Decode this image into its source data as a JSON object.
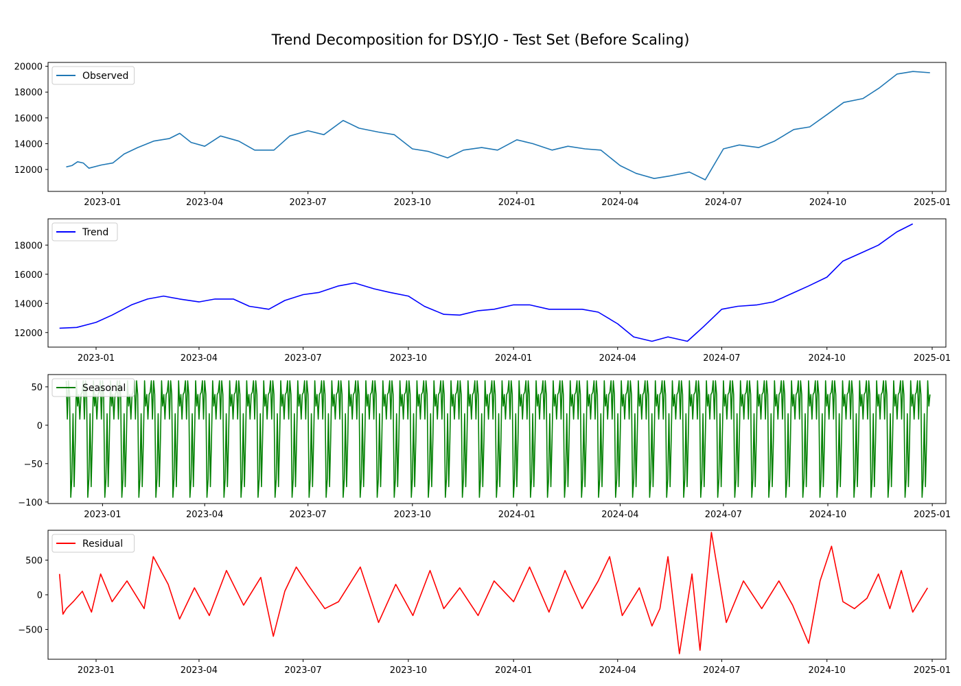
{
  "chart_data": {
    "title": "Trend Decomposition for DSY.JO - Test Set (Before Scaling)",
    "type": "line",
    "x_range": [
      "2022-11-14",
      "2025-01-13"
    ],
    "x_ticks": [
      "2023-01",
      "2023-04",
      "2023-07",
      "2023-10",
      "2024-01",
      "2024-04",
      "2024-07",
      "2024-10",
      "2025-01"
    ],
    "panels": [
      {
        "name": "Observed",
        "legend": "Observed",
        "color": "#1f77b4",
        "x_range": [
          "2022-11-14",
          "2025-01-13"
        ],
        "ylim": [
          10300,
          20300
        ],
        "yticks": [
          12000,
          14000,
          16000,
          18000,
          20000
        ],
        "x": [
          "2022-11-30",
          "2022-12-05",
          "2022-12-10",
          "2022-12-15",
          "2022-12-20",
          "2022-12-31",
          "2023-01-10",
          "2023-01-20",
          "2023-02-01",
          "2023-02-15",
          "2023-03-01",
          "2023-03-10",
          "2023-03-20",
          "2023-04-01",
          "2023-04-15",
          "2023-05-01",
          "2023-05-15",
          "2023-06-01",
          "2023-06-15",
          "2023-07-01",
          "2023-07-15",
          "2023-08-01",
          "2023-08-15",
          "2023-09-01",
          "2023-09-15",
          "2023-10-01",
          "2023-10-15",
          "2023-11-01",
          "2023-11-15",
          "2023-12-01",
          "2023-12-15",
          "2024-01-01",
          "2024-01-15",
          "2024-02-01",
          "2024-02-15",
          "2024-03-01",
          "2024-03-15",
          "2024-04-01",
          "2024-04-15",
          "2024-05-01",
          "2024-05-15",
          "2024-06-01",
          "2024-06-15",
          "2024-07-01",
          "2024-07-15",
          "2024-08-01",
          "2024-08-15",
          "2024-09-01",
          "2024-09-15",
          "2024-10-01",
          "2024-10-15",
          "2024-11-01",
          "2024-11-15",
          "2024-12-01",
          "2024-12-15",
          "2024-12-30"
        ],
        "values": [
          12200,
          12300,
          12600,
          12500,
          12100,
          12350,
          12500,
          13200,
          13700,
          14200,
          14400,
          14800,
          14100,
          13800,
          14600,
          14200,
          13500,
          13500,
          14600,
          15000,
          14700,
          15800,
          15200,
          14900,
          14700,
          13600,
          13400,
          12900,
          13500,
          13700,
          13500,
          14300,
          14000,
          13500,
          13800,
          13600,
          13500,
          12300,
          11700,
          11300,
          11500,
          11800,
          11200,
          13600,
          13900,
          13700,
          14200,
          15100,
          15300,
          16300,
          17200,
          17500,
          18300,
          19400,
          19600,
          19500
        ]
      },
      {
        "name": "Trend",
        "legend": "Trend",
        "color": "#0000ff",
        "x_range": [
          "2022-11-20",
          "2025-01-13"
        ],
        "ylim": [
          11000,
          19800
        ],
        "yticks": [
          12000,
          14000,
          16000,
          18000
        ],
        "x": [
          "2022-11-30",
          "2022-12-15",
          "2023-01-01",
          "2023-01-15",
          "2023-02-01",
          "2023-02-15",
          "2023-03-01",
          "2023-03-15",
          "2023-04-01",
          "2023-04-15",
          "2023-05-01",
          "2023-05-15",
          "2023-06-01",
          "2023-06-15",
          "2023-07-01",
          "2023-07-15",
          "2023-08-01",
          "2023-08-15",
          "2023-09-01",
          "2023-09-15",
          "2023-10-01",
          "2023-10-15",
          "2023-11-01",
          "2023-11-15",
          "2023-12-01",
          "2023-12-15",
          "2024-01-01",
          "2024-01-15",
          "2024-02-01",
          "2024-02-15",
          "2024-03-01",
          "2024-03-15",
          "2024-04-01",
          "2024-04-15",
          "2024-05-01",
          "2024-05-15",
          "2024-06-01",
          "2024-06-15",
          "2024-07-01",
          "2024-07-15",
          "2024-08-01",
          "2024-08-15",
          "2024-09-01",
          "2024-09-15",
          "2024-10-01",
          "2024-10-15",
          "2024-11-01",
          "2024-11-15",
          "2024-12-01",
          "2024-12-15"
        ],
        "values": [
          12300,
          12350,
          12700,
          13200,
          13900,
          14300,
          14500,
          14300,
          14100,
          14300,
          14300,
          13800,
          13600,
          14200,
          14600,
          14750,
          15200,
          15400,
          15000,
          14750,
          14500,
          13800,
          13250,
          13200,
          13500,
          13600,
          13900,
          13900,
          13600,
          13600,
          13600,
          13400,
          12600,
          11700,
          11400,
          11700,
          11400,
          12400,
          13600,
          13800,
          13900,
          14100,
          14700,
          15200,
          15800,
          16900,
          17500,
          18000,
          18900,
          19450
        ]
      },
      {
        "name": "Seasonal",
        "legend": "Seasonal",
        "color": "#008000",
        "x_range": [
          "2022-11-14",
          "2025-01-13"
        ],
        "ylim": [
          -102,
          66
        ],
        "yticks": [
          -100,
          -50,
          0,
          50
        ],
        "period_days": 15,
        "pattern": [
          58,
          8,
          58,
          40,
          -94,
          -70,
          15,
          -80,
          -20,
          58,
          25,
          40,
          8,
          40,
          43
        ],
        "x_start": "2022-11-30",
        "x_end": "2024-12-30"
      },
      {
        "name": "Residual",
        "legend": "Residual",
        "color": "#ff0000",
        "x_range": [
          "2022-11-20",
          "2025-01-13"
        ],
        "ylim": [
          -930,
          930
        ],
        "yticks": [
          -500,
          0,
          500
        ],
        "x": [
          "2022-11-30",
          "2022-12-03",
          "2022-12-06",
          "2022-12-12",
          "2022-12-20",
          "2022-12-28",
          "2023-01-05",
          "2023-01-15",
          "2023-01-28",
          "2023-02-12",
          "2023-02-20",
          "2023-03-05",
          "2023-03-15",
          "2023-03-28",
          "2023-04-10",
          "2023-04-25",
          "2023-05-10",
          "2023-05-25",
          "2023-06-05",
          "2023-06-15",
          "2023-06-25",
          "2023-07-05",
          "2023-07-20",
          "2023-08-01",
          "2023-08-20",
          "2023-09-05",
          "2023-09-20",
          "2023-10-05",
          "2023-10-20",
          "2023-11-01",
          "2023-11-15",
          "2023-12-01",
          "2023-12-15",
          "2024-01-01",
          "2024-01-15",
          "2024-02-01",
          "2024-02-15",
          "2024-03-01",
          "2024-03-15",
          "2024-03-25",
          "2024-04-05",
          "2024-04-20",
          "2024-05-01",
          "2024-05-08",
          "2024-05-15",
          "2024-05-25",
          "2024-06-05",
          "2024-06-12",
          "2024-06-22",
          "2024-06-28",
          "2024-07-05",
          "2024-07-20",
          "2024-08-05",
          "2024-08-20",
          "2024-09-01",
          "2024-09-15",
          "2024-09-25",
          "2024-10-05",
          "2024-10-15",
          "2024-10-25",
          "2024-11-05",
          "2024-11-15",
          "2024-11-25",
          "2024-12-05",
          "2024-12-15",
          "2024-12-28"
        ],
        "values": [
          300,
          -280,
          -200,
          -100,
          50,
          -250,
          300,
          -100,
          200,
          -200,
          550,
          150,
          -350,
          100,
          -300,
          350,
          -150,
          250,
          -600,
          50,
          400,
          150,
          -200,
          -100,
          400,
          -400,
          150,
          -300,
          350,
          -200,
          100,
          -300,
          200,
          -100,
          400,
          -250,
          350,
          -200,
          200,
          550,
          -300,
          100,
          -450,
          -200,
          550,
          -850,
          300,
          -800,
          900,
          300,
          -400,
          200,
          -200,
          200,
          -150,
          -700,
          200,
          700,
          -100,
          -200,
          -50,
          300,
          -200,
          350,
          -250,
          100
        ]
      }
    ]
  }
}
